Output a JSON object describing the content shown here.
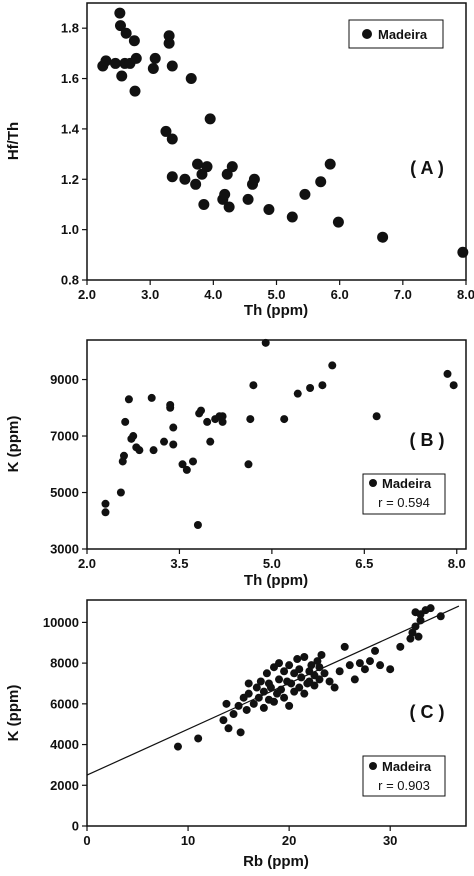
{
  "chart_data": [
    {
      "type": "scatter",
      "panel_label": "( A )",
      "xlabel": "Th (ppm)",
      "ylabel": "Hf/Th",
      "xlim": [
        2.0,
        8.0
      ],
      "ylim": [
        0.8,
        1.9
      ],
      "xticks": [
        2.0,
        3.0,
        4.0,
        5.0,
        6.0,
        7.0,
        8.0
      ],
      "xtick_labels": [
        "2.0",
        "3.0",
        "4.0",
        "5.0",
        "6.0",
        "7.0",
        "8.0"
      ],
      "yticks": [
        0.8,
        1.0,
        1.2,
        1.4,
        1.6,
        1.8
      ],
      "ytick_labels": [
        "0.8",
        "1.0",
        "1.2",
        "1.4",
        "1.6",
        "1.8"
      ],
      "legend": {
        "label": "Madeira",
        "position": "top-right"
      },
      "series": [
        {
          "name": "Madeira",
          "x": [
            2.25,
            2.3,
            2.45,
            2.52,
            2.53,
            2.55,
            2.6,
            2.62,
            2.68,
            2.75,
            2.76,
            2.78,
            3.05,
            3.08,
            3.3,
            3.3,
            3.35,
            3.35,
            3.25,
            3.35,
            3.55,
            3.65,
            3.72,
            3.75,
            3.82,
            3.85,
            3.9,
            3.95,
            4.15,
            4.18,
            4.22,
            4.25,
            4.3,
            4.55,
            4.62,
            4.65,
            4.88,
            5.25,
            5.45,
            5.7,
            5.85,
            5.98,
            6.68,
            7.95
          ],
          "y": [
            1.65,
            1.67,
            1.66,
            1.86,
            1.81,
            1.61,
            1.66,
            1.78,
            1.66,
            1.75,
            1.55,
            1.68,
            1.64,
            1.68,
            1.74,
            1.77,
            1.65,
            1.36,
            1.39,
            1.21,
            1.2,
            1.6,
            1.18,
            1.26,
            1.22,
            1.1,
            1.25,
            1.44,
            1.12,
            1.14,
            1.22,
            1.09,
            1.25,
            1.12,
            1.18,
            1.2,
            1.08,
            1.05,
            1.14,
            1.19,
            1.26,
            1.03,
            0.97,
            0.91
          ]
        }
      ]
    },
    {
      "type": "scatter",
      "panel_label": "( B )",
      "xlabel": "Th (ppm)",
      "ylabel": "K (ppm)",
      "xlim": [
        2.0,
        8.15
      ],
      "ylim": [
        3000,
        10400
      ],
      "xticks": [
        2.0,
        3.5,
        5.0,
        6.5,
        8.0
      ],
      "xtick_labels": [
        "2.0",
        "3.5",
        "5.0",
        "6.5",
        "8.0"
      ],
      "yticks": [
        3000,
        5000,
        7000,
        9000
      ],
      "ytick_labels": [
        "3000",
        "5000",
        "7000",
        "9000"
      ],
      "legend": {
        "label": "Madeira",
        "stat": "r = 0.594",
        "position": "bottom-right"
      },
      "series": [
        {
          "name": "Madeira",
          "x": [
            2.3,
            2.3,
            2.55,
            2.58,
            2.6,
            2.62,
            2.68,
            2.72,
            2.75,
            2.8,
            2.85,
            3.05,
            3.08,
            3.25,
            3.35,
            3.35,
            3.4,
            3.4,
            3.55,
            3.62,
            3.72,
            3.8,
            3.82,
            3.85,
            3.95,
            4.0,
            4.08,
            4.15,
            4.2,
            4.2,
            4.62,
            4.65,
            4.7,
            4.9,
            5.2,
            5.42,
            5.62,
            5.82,
            5.98,
            6.7,
            7.85,
            7.95
          ],
          "y": [
            4600,
            4300,
            5000,
            6100,
            6300,
            7500,
            8300,
            6900,
            7000,
            6600,
            6500,
            8350,
            6500,
            6800,
            8000,
            8100,
            7300,
            6700,
            6000,
            5800,
            6100,
            3850,
            7800,
            7900,
            7500,
            6800,
            7600,
            7700,
            7500,
            7700,
            6000,
            7600,
            8800,
            10300,
            7600,
            8500,
            8700,
            8800,
            9500,
            7700,
            9200,
            8800
          ]
        }
      ]
    },
    {
      "type": "scatter",
      "panel_label": "( C )",
      "xlabel": "Rb (ppm)",
      "ylabel": "K (ppm)",
      "xlim": [
        0,
        37.5
      ],
      "ylim": [
        0,
        11100
      ],
      "xticks": [
        0,
        10,
        20,
        30
      ],
      "xtick_labels": [
        "0",
        "10",
        "20",
        "30"
      ],
      "yticks": [
        0,
        2000,
        4000,
        6000,
        8000,
        10000
      ],
      "ytick_labels": [
        "0",
        "2000",
        "4000",
        "6000",
        "8000",
        "10000"
      ],
      "legend": {
        "label": "Madeira",
        "stat": "r = 0.903",
        "position": "bottom-right"
      },
      "trendline": {
        "x": [
          0,
          36.8
        ],
        "y": [
          2500,
          10800
        ]
      },
      "series": [
        {
          "name": "Madeira",
          "x": [
            9,
            11,
            13.5,
            13.8,
            14,
            14.5,
            15,
            15.2,
            15.5,
            15.8,
            16,
            16,
            16.5,
            16.8,
            17,
            17.2,
            17.5,
            17.5,
            17.8,
            18,
            18,
            18.2,
            18.5,
            18.5,
            18.8,
            19,
            19,
            19.2,
            19.5,
            19.5,
            19.8,
            20,
            20,
            20.2,
            20.5,
            20.5,
            20.8,
            21,
            21,
            21.2,
            21.5,
            21.5,
            21.8,
            22,
            22,
            22.2,
            22.5,
            22.5,
            22.8,
            23,
            23,
            23.2,
            23.5,
            24,
            24.5,
            25,
            25.5,
            26,
            26.5,
            27,
            27.5,
            28,
            28.5,
            29,
            30,
            31,
            32,
            32.2,
            32.5,
            32.5,
            32.8,
            33,
            33,
            33.5,
            34,
            35
          ],
          "y": [
            3900,
            4300,
            5200,
            6000,
            4800,
            5500,
            5900,
            4600,
            6300,
            5700,
            7000,
            6500,
            6000,
            6800,
            6300,
            7100,
            5800,
            6600,
            7500,
            6200,
            7000,
            6800,
            6100,
            7800,
            6500,
            7200,
            8000,
            6700,
            6300,
            7600,
            7100,
            5900,
            7900,
            7000,
            6600,
            7500,
            8200,
            6800,
            7700,
            7300,
            6500,
            8300,
            7000,
            7600,
            7100,
            7900,
            6900,
            7400,
            8100,
            7200,
            7800,
            8400,
            7500,
            7100,
            6800,
            7600,
            8800,
            7900,
            7200,
            8000,
            7700,
            8100,
            8600,
            7900,
            7700,
            8800,
            9200,
            9500,
            9800,
            10500,
            9300,
            10100,
            10400,
            10600,
            10700,
            10300
          ]
        }
      ]
    }
  ]
}
